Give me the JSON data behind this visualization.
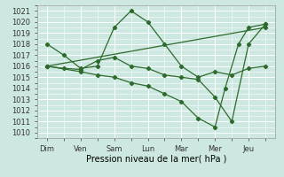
{
  "xlabel": "Pression niveau de la mer( hPa )",
  "ylim": [
    1009.5,
    1021.5
  ],
  "yticks": [
    1010,
    1011,
    1012,
    1013,
    1014,
    1015,
    1016,
    1017,
    1018,
    1019,
    1020,
    1021
  ],
  "xtick_labels": [
    "Dim",
    "Ven",
    "Sam",
    "Lun",
    "Mar",
    "Mer",
    "Jeu"
  ],
  "xtick_pos": [
    0,
    1,
    2,
    3,
    4,
    5,
    6
  ],
  "xlim": [
    -0.3,
    6.8
  ],
  "background_color": "#cde8e0",
  "grid_color": "#ffffff",
  "line_color": "#2d6b2d",
  "series": [
    {
      "x": [
        0,
        0.5,
        1.0,
        1.5,
        2.0,
        2.5,
        3.0,
        3.5,
        4.0,
        4.5,
        5.0,
        5.5,
        6.0,
        6.5
      ],
      "y": [
        1018,
        1017,
        1015.8,
        1016,
        1019.5,
        1021,
        1020,
        1018,
        1016,
        1015,
        1015.5,
        1015.2,
        1015.8,
        1016.0
      ]
    },
    {
      "x": [
        0,
        0.5,
        1.0,
        1.5,
        2.0,
        2.5,
        3.0,
        3.5,
        4.0,
        4.5,
        5.0,
        5.5,
        6.0,
        6.5
      ],
      "y": [
        1016,
        1015.8,
        1015.7,
        1016.5,
        1016.8,
        1016,
        1015.8,
        1015.2,
        1015.0,
        1014.8,
        1013.2,
        1011.0,
        1018.0,
        1019.8
      ]
    },
    {
      "x": [
        0,
        6.5
      ],
      "y": [
        1016,
        1019.5
      ]
    },
    {
      "x": [
        0,
        1.0,
        1.5,
        2.0,
        2.5,
        3.0,
        3.5,
        4.0,
        4.5,
        5.0,
        5.3,
        5.7,
        6.0,
        6.5
      ],
      "y": [
        1016,
        1015.5,
        1015.2,
        1015.0,
        1014.5,
        1014.2,
        1013.5,
        1012.8,
        1011.3,
        1010.5,
        1014.0,
        1018.0,
        1019.5,
        1019.8
      ]
    }
  ],
  "xlabel_fontsize": 7,
  "tick_fontsize": 6
}
